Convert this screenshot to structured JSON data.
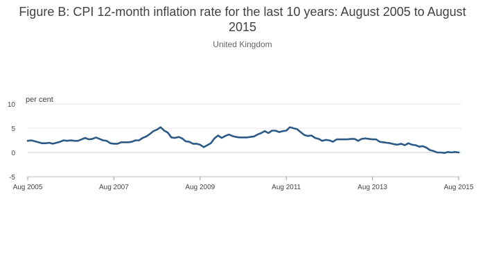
{
  "chart_data": {
    "type": "line",
    "title": "Figure B: CPI 12-month inflation rate for the last 10 years: August 2005 to August 2015",
    "subtitle": "United Kingdom",
    "ylabel": "per cent",
    "xlabel": "",
    "ylim": [
      -5,
      10
    ],
    "yticks": [
      10,
      5,
      0,
      -5
    ],
    "xlim": [
      2005.583,
      2015.583
    ],
    "xticks": [
      {
        "label": "Aug 2005",
        "x": 2005.583
      },
      {
        "label": "Aug 2007",
        "x": 2007.583
      },
      {
        "label": "Aug 2009",
        "x": 2009.583
      },
      {
        "label": "Aug 2011",
        "x": 2011.583
      },
      {
        "label": "Aug 2013",
        "x": 2013.583
      },
      {
        "label": "Aug 2015",
        "x": 2015.583
      }
    ],
    "series": [
      {
        "name": "CPI 12-month inflation rate",
        "color": "#2a5a85",
        "start": "Aug 2005",
        "frequency": "monthly",
        "values": [
          2.4,
          2.5,
          2.3,
          2.1,
          1.9,
          1.9,
          2.0,
          1.8,
          2.0,
          2.2,
          2.5,
          2.4,
          2.5,
          2.4,
          2.4,
          2.7,
          3.0,
          2.7,
          2.8,
          3.1,
          2.8,
          2.5,
          2.4,
          1.9,
          1.8,
          1.8,
          2.1,
          2.1,
          2.1,
          2.2,
          2.5,
          2.5,
          3.0,
          3.3,
          3.8,
          4.4,
          4.7,
          5.2,
          4.5,
          4.1,
          3.1,
          3.0,
          3.2,
          2.9,
          2.3,
          2.2,
          1.8,
          1.8,
          1.6,
          1.1,
          1.5,
          1.9,
          2.9,
          3.5,
          3.0,
          3.4,
          3.7,
          3.4,
          3.2,
          3.1,
          3.1,
          3.1,
          3.2,
          3.3,
          3.7,
          4.0,
          4.4,
          4.0,
          4.5,
          4.5,
          4.2,
          4.4,
          4.5,
          5.2,
          5.0,
          4.8,
          4.2,
          3.6,
          3.4,
          3.5,
          3.0,
          2.8,
          2.4,
          2.6,
          2.5,
          2.2,
          2.7,
          2.7,
          2.7,
          2.7,
          2.8,
          2.8,
          2.4,
          2.8,
          2.9,
          2.8,
          2.7,
          2.7,
          2.2,
          2.1,
          2.0,
          1.9,
          1.7,
          1.6,
          1.8,
          1.5,
          1.9,
          1.6,
          1.5,
          1.2,
          1.3,
          1.0,
          0.5,
          0.3,
          0.0,
          0.0,
          -0.1,
          0.1,
          0.0,
          0.1,
          0.0
        ]
      }
    ]
  }
}
